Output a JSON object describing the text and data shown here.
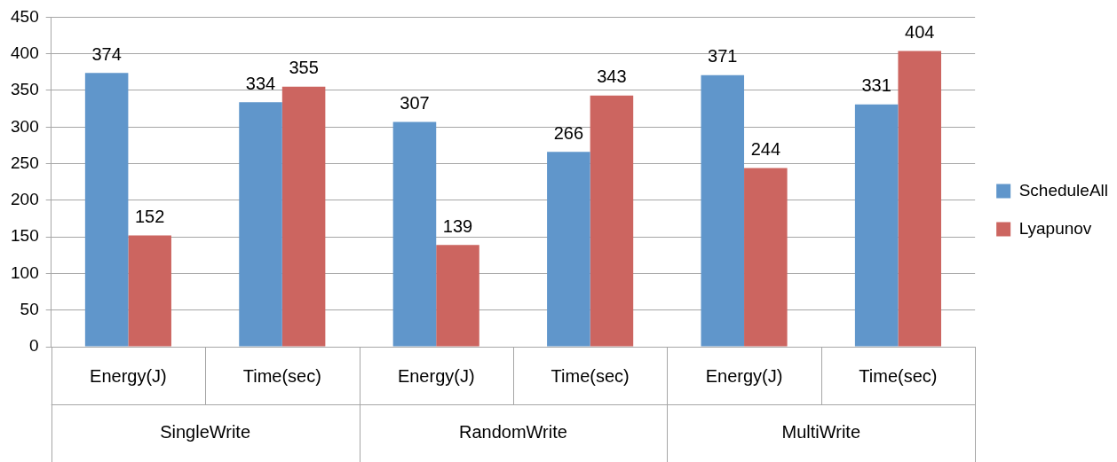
{
  "chart_data": {
    "type": "bar",
    "categories": [
      "Energy(J)",
      "Time(sec)",
      "Energy(J)",
      "Time(sec)",
      "Energy(J)",
      "Time(sec)"
    ],
    "series": [
      {
        "name": "ScheduleAll",
        "color": "#6096cb",
        "values": [
          374,
          334,
          307,
          266,
          371,
          331
        ]
      },
      {
        "name": "Lyapunov",
        "color": "#cc6560",
        "values": [
          152,
          355,
          139,
          343,
          244,
          404
        ]
      }
    ],
    "annotations": [
      "SingleWrite",
      "RandomWrite",
      "MultiWrite"
    ],
    "ylim": [
      0,
      450
    ],
    "yticks": [
      0,
      50,
      100,
      150,
      200,
      250,
      300,
      350,
      400,
      450
    ],
    "grid": "y",
    "legend": "right",
    "data_labels": true
  }
}
